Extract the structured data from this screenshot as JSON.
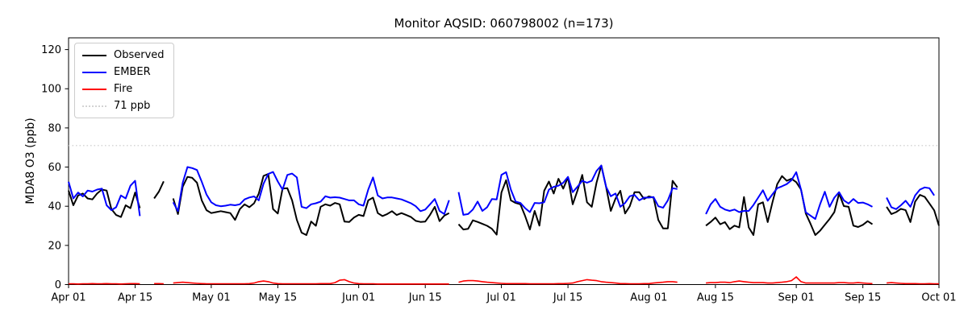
{
  "chart_data": {
    "type": "line",
    "title": "Monitor AQSID: 060798002 (n=173)",
    "ylabel": "MDA8 O3 (ppb)",
    "xlabel": "",
    "ylim": [
      0,
      126
    ],
    "yticks": [
      0,
      20,
      40,
      60,
      80,
      100,
      120
    ],
    "xticks": [
      {
        "day": 0,
        "label": "Apr 01"
      },
      {
        "day": 14,
        "label": "Apr 15"
      },
      {
        "day": 30,
        "label": "May 01"
      },
      {
        "day": 44,
        "label": "May 15"
      },
      {
        "day": 61,
        "label": "Jun 01"
      },
      {
        "day": 75,
        "label": "Jun 15"
      },
      {
        "day": 91,
        "label": "Jul 01"
      },
      {
        "day": 105,
        "label": "Jul 15"
      },
      {
        "day": 122,
        "label": "Aug 01"
      },
      {
        "day": 136,
        "label": "Aug 15"
      },
      {
        "day": 153,
        "label": "Sep 01"
      },
      {
        "day": 167,
        "label": "Sep 15"
      },
      {
        "day": 183,
        "label": "Oct 01"
      }
    ],
    "x_domain_days": [
      0,
      183
    ],
    "n_points": 173,
    "grid": false,
    "legend_position": "upper left",
    "threshold": {
      "value": 71,
      "label": "71 ppb",
      "color": "#d3d3d3",
      "style": "dotted"
    },
    "series": [
      {
        "name": "Observed",
        "color": "#000000",
        "values": [
          48.0,
          40.5,
          45.5,
          46.5,
          44.0,
          43.5,
          46.5,
          48.5,
          48.0,
          38.5,
          35.5,
          34.5,
          40.5,
          39.0,
          47.0,
          39.0,
          null,
          null,
          44.0,
          47.5,
          52.7,
          null,
          44.0,
          36.0,
          50.0,
          55.0,
          54.5,
          52.0,
          43.0,
          38.0,
          36.5,
          37.0,
          37.5,
          37.0,
          36.5,
          33.0,
          38.5,
          41.0,
          39.5,
          41.5,
          46.5,
          55.5,
          56.5,
          38.5,
          36.3,
          49.0,
          49.2,
          43.0,
          33.0,
          26.5,
          25.3,
          32.2,
          30.0,
          39.7,
          41.0,
          40.3,
          41.7,
          41.0,
          32.2,
          32.0,
          34.2,
          35.6,
          35.0,
          43.0,
          44.4,
          36.5,
          35.0,
          36.0,
          37.5,
          35.5,
          36.5,
          35.5,
          34.5,
          32.5,
          32.0,
          32.2,
          35.6,
          39.7,
          32.4,
          35.2,
          36.5,
          null,
          30.8,
          28.1,
          28.5,
          32.8,
          32.0,
          31.0,
          30.0,
          28.5,
          25.5,
          47.0,
          53.3,
          43.0,
          41.7,
          41.0,
          35.0,
          28.1,
          37.6,
          30.1,
          47.9,
          52.6,
          46.5,
          54.0,
          49.0,
          54.7,
          41.0,
          48.0,
          56.0,
          42.0,
          39.7,
          52.0,
          60.8,
          50.0,
          37.6,
          44.0,
          47.9,
          36.3,
          40.0,
          47.2,
          47.2,
          43.7,
          45.0,
          44.4,
          33.0,
          28.7,
          28.7,
          53.0,
          49.6,
          null,
          null,
          null,
          null,
          null,
          30.1,
          32.0,
          34.2,
          30.8,
          31.9,
          28.3,
          30.1,
          29.2,
          44.7,
          29.2,
          25.3,
          41.0,
          42.0,
          31.9,
          42.0,
          51.3,
          55.4,
          53.0,
          54.0,
          52.3,
          48.5,
          36.3,
          31.0,
          25.3,
          27.5,
          30.5,
          33.5,
          37.0,
          46.5,
          40.1,
          39.7,
          30.1,
          29.4,
          30.5,
          32.4,
          30.8,
          null,
          null,
          39.7,
          36.0,
          37.0,
          38.7,
          38.0,
          31.9,
          42.4,
          45.8,
          44.8,
          41.4,
          37.9,
          30.1
        ]
      },
      {
        "name": "EMBER",
        "color": "#0000ff",
        "values": [
          52.5,
          44.0,
          47.0,
          45.0,
          48.0,
          47.5,
          48.5,
          49.0,
          40.5,
          38.0,
          39.5,
          45.5,
          44.0,
          50.5,
          53.0,
          35.0,
          null,
          null,
          null,
          null,
          null,
          null,
          42.0,
          37.5,
          52.0,
          60.0,
          59.5,
          58.5,
          52.5,
          46.0,
          42.0,
          40.5,
          40.0,
          40.3,
          40.8,
          40.5,
          41.0,
          43.5,
          44.5,
          45.0,
          43.0,
          51.5,
          56.5,
          57.5,
          52.6,
          48.5,
          56.0,
          56.7,
          54.7,
          39.7,
          39.0,
          41.0,
          41.5,
          42.4,
          45.1,
          44.4,
          44.6,
          44.4,
          43.7,
          43.0,
          43.0,
          41.0,
          40.3,
          48.5,
          54.7,
          45.5,
          44.0,
          44.5,
          44.5,
          44.0,
          43.5,
          42.5,
          41.5,
          40.0,
          37.5,
          38.3,
          41.0,
          43.7,
          37.6,
          36.0,
          43.1,
          null,
          47.2,
          35.6,
          36.0,
          38.3,
          42.4,
          37.6,
          39.5,
          43.7,
          43.5,
          56.0,
          57.4,
          48.5,
          42.4,
          41.7,
          39.0,
          37.0,
          41.7,
          41.5,
          42.0,
          48.5,
          49.9,
          50.5,
          52.0,
          55.0,
          47.2,
          50.0,
          53.0,
          52.0,
          53.0,
          58.0,
          60.8,
          50.0,
          45.1,
          46.5,
          39.7,
          41.7,
          45.1,
          45.8,
          43.0,
          44.4,
          44.4,
          44.7,
          40.0,
          39.2,
          43.0,
          49.2,
          48.8,
          null,
          null,
          null,
          null,
          null,
          36.0,
          41.0,
          43.7,
          39.7,
          38.3,
          37.6,
          38.3,
          37.0,
          37.6,
          37.6,
          40.6,
          44.4,
          48.2,
          42.8,
          46.1,
          49.2,
          50.2,
          51.3,
          53.3,
          57.4,
          48.5,
          36.9,
          35.2,
          33.5,
          41.0,
          47.4,
          39.7,
          44.4,
          47.2,
          43.0,
          41.4,
          43.7,
          41.7,
          41.9,
          41.0,
          39.7,
          null,
          null,
          44.4,
          39.5,
          38.5,
          40.5,
          42.8,
          39.7,
          45.5,
          48.5,
          49.6,
          49.2,
          45.5,
          null
        ]
      },
      {
        "name": "Fire",
        "color": "#ff0000",
        "values": [
          0.4,
          0.4,
          0.3,
          0.4,
          0.4,
          0.5,
          0.4,
          0.4,
          0.5,
          0.4,
          0.4,
          0.3,
          0.4,
          0.5,
          0.5,
          0.4,
          null,
          null,
          0.5,
          0.5,
          0.4,
          null,
          0.8,
          1.0,
          1.2,
          1.0,
          0.8,
          0.6,
          0.5,
          0.4,
          0.4,
          0.4,
          0.4,
          0.4,
          0.4,
          0.4,
          0.4,
          0.4,
          0.5,
          0.8,
          1.5,
          1.8,
          1.5,
          0.8,
          0.5,
          0.4,
          0.4,
          0.4,
          0.4,
          0.4,
          0.4,
          0.4,
          0.4,
          0.5,
          0.5,
          0.5,
          1.0,
          2.2,
          2.5,
          1.5,
          0.8,
          0.5,
          0.4,
          0.4,
          0.4,
          0.3,
          0.3,
          0.3,
          0.3,
          0.3,
          0.3,
          0.3,
          0.3,
          0.3,
          0.3,
          0.3,
          0.3,
          0.3,
          0.3,
          0.3,
          0.3,
          null,
          1.2,
          1.8,
          2.0,
          2.0,
          1.8,
          1.5,
          1.2,
          1.0,
          0.8,
          0.6,
          0.5,
          0.5,
          0.5,
          0.5,
          0.5,
          0.4,
          0.4,
          0.4,
          0.4,
          0.4,
          0.4,
          0.5,
          0.5,
          0.6,
          0.8,
          1.5,
          2.0,
          2.5,
          2.2,
          2.0,
          1.5,
          1.2,
          1.0,
          0.8,
          0.5,
          0.5,
          0.4,
          0.4,
          0.4,
          0.5,
          0.5,
          0.8,
          1.0,
          1.2,
          1.5,
          1.5,
          1.2,
          null,
          null,
          null,
          null,
          null,
          0.8,
          1.0,
          1.0,
          1.2,
          1.2,
          1.0,
          1.5,
          1.8,
          1.5,
          1.2,
          1.0,
          1.0,
          1.0,
          0.8,
          0.8,
          1.0,
          1.2,
          1.5,
          2.0,
          3.9,
          1.5,
          0.8,
          0.8,
          0.8,
          0.8,
          0.8,
          0.8,
          0.8,
          1.0,
          1.0,
          0.8,
          0.8,
          1.0,
          0.8,
          0.6,
          0.5,
          null,
          null,
          0.8,
          1.0,
          0.8,
          0.6,
          0.5,
          0.5,
          0.5,
          0.4,
          0.4,
          0.5,
          0.4,
          0.4
        ]
      }
    ]
  }
}
